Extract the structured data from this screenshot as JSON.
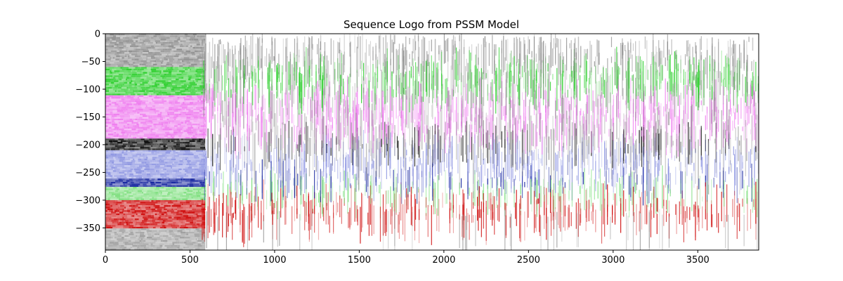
{
  "chart_data": {
    "type": "heatmap",
    "title": "Sequence Logo from PSSM Model",
    "xlabel": "",
    "ylabel": "",
    "xlim": [
      0,
      3860
    ],
    "ylim": [
      -390,
      0
    ],
    "x_ticks": [
      0,
      500,
      1000,
      1500,
      2000,
      2500,
      3000,
      3500
    ],
    "x_tick_labels": [
      "0",
      "500",
      "1000",
      "1500",
      "2000",
      "2500",
      "3000",
      "3500"
    ],
    "y_ticks": [
      0,
      -50,
      -100,
      -150,
      -200,
      -250,
      -300,
      -350
    ],
    "y_tick_labels": [
      "0",
      "−50",
      "−100",
      "−150",
      "−200",
      "−250",
      "−300",
      "−350"
    ],
    "grid": false,
    "legend": "none",
    "bands": [
      {
        "from": 0,
        "to": -60,
        "color": "#8a8a8a"
      },
      {
        "from": -60,
        "to": -110,
        "color": "#22cc22"
      },
      {
        "from": -110,
        "to": -190,
        "color": "#ee77ee"
      },
      {
        "from": -190,
        "to": -210,
        "color": "#000000"
      },
      {
        "from": -210,
        "to": -260,
        "color": "#8890e0"
      },
      {
        "from": -260,
        "to": -275,
        "color": "#0a1a9a"
      },
      {
        "from": -275,
        "to": -300,
        "color": "#77dd77"
      },
      {
        "from": -300,
        "to": -350,
        "color": "#cc0000"
      },
      {
        "from": -350,
        "to": -390,
        "color": "#9a9a9a"
      }
    ],
    "structured_region_end_x": 590
  }
}
